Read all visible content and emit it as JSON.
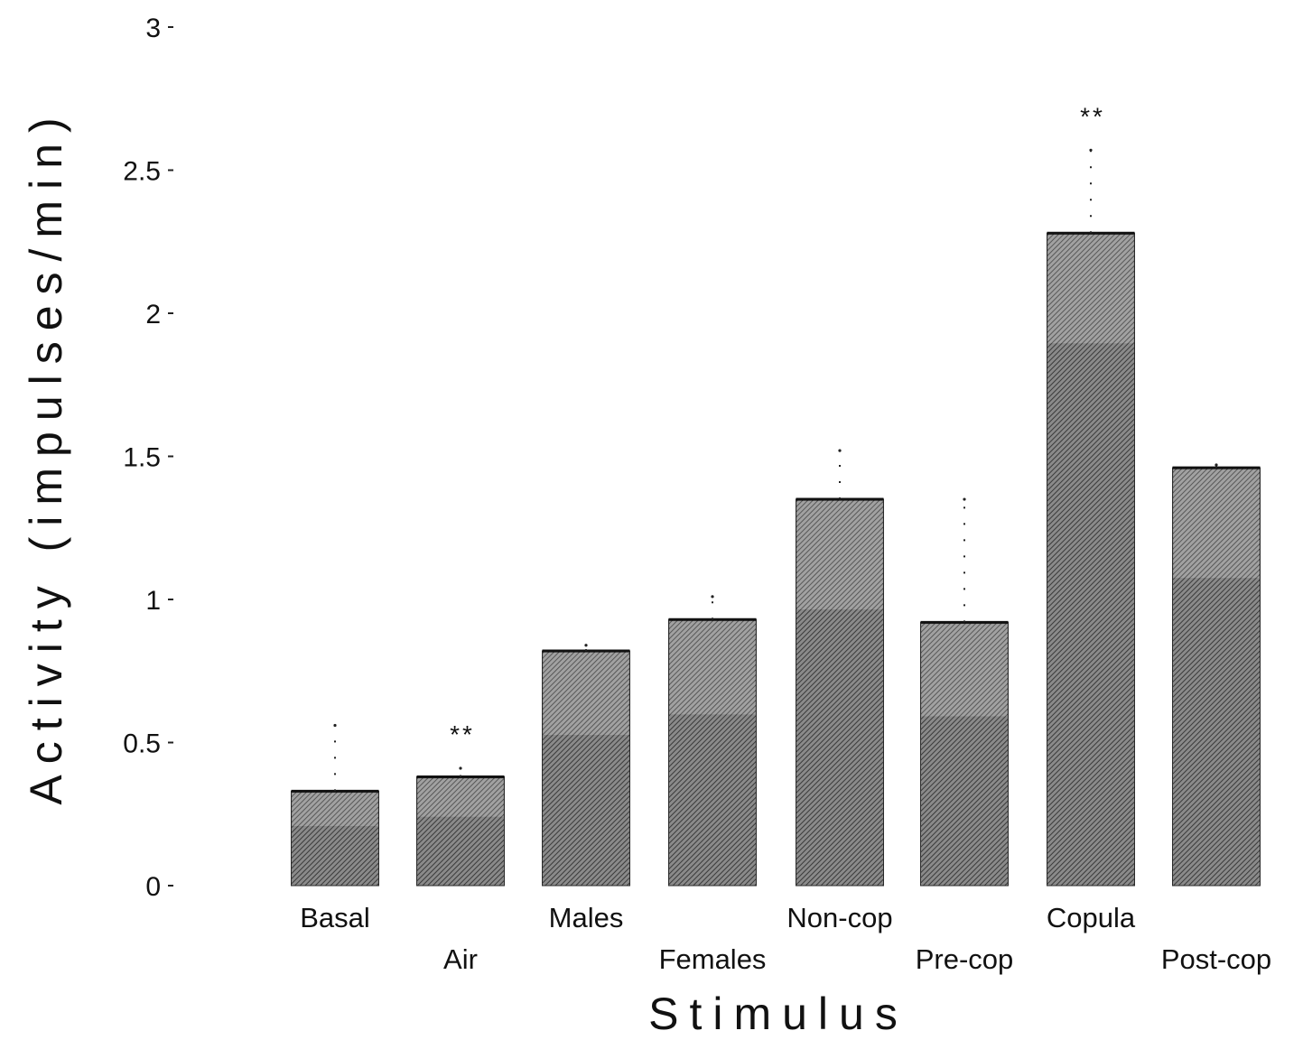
{
  "chart_data": {
    "type": "bar",
    "xlabel": "Stimulus",
    "ylabel": "Activity (impulses/min)",
    "ylim": [
      0,
      3
    ],
    "yticks": [
      "0",
      "0.5",
      "1",
      "1.5",
      "2",
      "2.5",
      "3"
    ],
    "grid": false,
    "categories": [
      "Basal",
      "Air",
      "Males",
      "Females",
      "Non-cop",
      "Pre-cop",
      "Copula",
      "Post-cop"
    ],
    "values": [
      0.33,
      0.38,
      0.82,
      0.93,
      1.35,
      0.92,
      2.28,
      1.46
    ],
    "error_upper": [
      0.56,
      0.41,
      0.84,
      1.01,
      1.52,
      1.35,
      2.57,
      1.47
    ],
    "significance": [
      "",
      "**",
      "",
      "",
      "",
      "",
      "**",
      ""
    ],
    "colors": {
      "bar_light": "#a9a9a9",
      "bar_dark": "#6e6e6e",
      "ink": "#111111"
    }
  }
}
